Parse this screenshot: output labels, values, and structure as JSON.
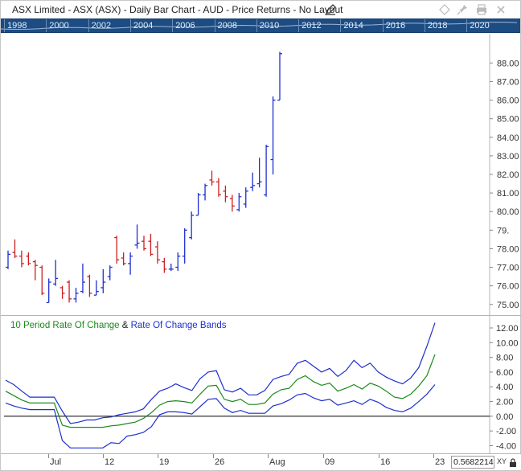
{
  "window": {
    "title": "ASX Limited - ASX (ASX) - Daily Bar Chart - AUD - Price Returns - No Layout",
    "icons": [
      "edit-icon",
      "diamond-icon",
      "pin-icon",
      "print-icon",
      "close-icon"
    ]
  },
  "overview": {
    "years": [
      "1998",
      "2000",
      "2002",
      "2004",
      "2006",
      "2008",
      "2010",
      "2012",
      "2014",
      "2016",
      "2018",
      "2020"
    ]
  },
  "indicator": {
    "title_part1": "10 Period Rate Of Change",
    "title_amp": " & ",
    "title_part2": "Rate Of Change Bands",
    "color_roc": "#1a8a1a",
    "color_bands": "#1f2fcf"
  },
  "date_axis": {
    "labels": [
      "Jul",
      "12",
      "19",
      "26",
      "Aug",
      "09",
      "16",
      "23"
    ]
  },
  "readout": {
    "value": "0.5682214",
    "xy_label": "XY"
  },
  "colors": {
    "up_bar": "#1f2fcf",
    "down_bar": "#cc1f1f",
    "overview_bg": "#1c4c82"
  },
  "chart_data": [
    {
      "type": "bar",
      "title": "ASX Limited - ASX (ASX) - Daily Bar Chart - AUD - Price Returns - No Layout",
      "ylim": [
        74.6,
        89.4
      ],
      "y_ticks": [
        75,
        76,
        77,
        78,
        79,
        80,
        81,
        82,
        83,
        84,
        85,
        86,
        87,
        88
      ],
      "y_tick_labels": [
        "75.00",
        "76.00",
        "77.00",
        "78.00",
        "79.",
        "80.00",
        "81.00",
        "82.00",
        "83.00",
        "84.00",
        "85.00",
        "86.00",
        "87.00",
        "88.00"
      ],
      "bars": [
        {
          "o": 77.0,
          "h": 77.9,
          "l": 76.9,
          "c": 77.7
        },
        {
          "o": 77.8,
          "h": 78.5,
          "l": 77.5,
          "c": 77.6
        },
        {
          "o": 77.6,
          "h": 77.9,
          "l": 77.0,
          "c": 77.2
        },
        {
          "o": 77.6,
          "h": 77.8,
          "l": 77.1,
          "c": 77.2
        },
        {
          "o": 77.3,
          "h": 77.4,
          "l": 76.3,
          "c": 77.1
        },
        {
          "o": 77.0,
          "h": 77.1,
          "l": 75.5,
          "c": 75.6
        },
        {
          "o": 75.1,
          "h": 76.4,
          "l": 75.1,
          "c": 76.2
        },
        {
          "o": 76.1,
          "h": 77.4,
          "l": 76.0,
          "c": 76.4
        },
        {
          "o": 75.9,
          "h": 76.0,
          "l": 75.3,
          "c": 75.6
        },
        {
          "o": 76.2,
          "h": 76.3,
          "l": 75.1,
          "c": 75.3
        },
        {
          "o": 75.3,
          "h": 75.9,
          "l": 75.1,
          "c": 75.6
        },
        {
          "o": 75.7,
          "h": 77.2,
          "l": 75.6,
          "c": 76.2
        },
        {
          "o": 76.5,
          "h": 76.6,
          "l": 75.4,
          "c": 75.6
        },
        {
          "o": 75.5,
          "h": 76.3,
          "l": 75.5,
          "c": 75.7
        },
        {
          "o": 75.9,
          "h": 76.9,
          "l": 75.6,
          "c": 76.2
        },
        {
          "o": 76.5,
          "h": 77.1,
          "l": 76.3,
          "c": 77.0
        },
        {
          "o": 78.6,
          "h": 78.7,
          "l": 77.2,
          "c": 77.4
        },
        {
          "o": 77.5,
          "h": 77.8,
          "l": 77.1,
          "c": 77.2
        },
        {
          "o": 77.2,
          "h": 77.8,
          "l": 76.6,
          "c": 77.6
        },
        {
          "o": 78.2,
          "h": 79.3,
          "l": 78.0,
          "c": 78.3
        },
        {
          "o": 78.4,
          "h": 78.7,
          "l": 77.9,
          "c": 78.0
        },
        {
          "o": 78.4,
          "h": 78.8,
          "l": 77.6,
          "c": 77.7
        },
        {
          "o": 78.1,
          "h": 78.4,
          "l": 77.2,
          "c": 77.4
        },
        {
          "o": 77.3,
          "h": 77.5,
          "l": 76.7,
          "c": 76.9
        },
        {
          "o": 76.9,
          "h": 77.2,
          "l": 76.8,
          "c": 76.9
        },
        {
          "o": 77.0,
          "h": 77.8,
          "l": 76.8,
          "c": 77.6
        },
        {
          "o": 77.6,
          "h": 79.1,
          "l": 77.2,
          "c": 79.0
        },
        {
          "o": 78.6,
          "h": 80.0,
          "l": 78.5,
          "c": 79.8
        },
        {
          "o": 79.8,
          "h": 81.0,
          "l": 79.8,
          "c": 80.9
        },
        {
          "o": 80.9,
          "h": 81.5,
          "l": 80.6,
          "c": 81.4
        },
        {
          "o": 81.7,
          "h": 82.2,
          "l": 81.4,
          "c": 81.6
        },
        {
          "o": 81.6,
          "h": 81.8,
          "l": 80.8,
          "c": 80.9
        },
        {
          "o": 81.1,
          "h": 81.4,
          "l": 80.5,
          "c": 80.8
        },
        {
          "o": 80.7,
          "h": 80.9,
          "l": 80.0,
          "c": 80.3
        },
        {
          "o": 80.1,
          "h": 81.0,
          "l": 80.0,
          "c": 80.8
        },
        {
          "o": 80.4,
          "h": 81.3,
          "l": 80.2,
          "c": 81.1
        },
        {
          "o": 81.3,
          "h": 82.1,
          "l": 81.1,
          "c": 81.4
        },
        {
          "o": 81.5,
          "h": 82.9,
          "l": 81.3,
          "c": 81.6
        },
        {
          "o": 80.9,
          "h": 83.6,
          "l": 80.8,
          "c": 83.5
        },
        {
          "o": 82.8,
          "h": 86.2,
          "l": 82.0,
          "c": 86.0
        },
        {
          "o": 86.0,
          "h": 88.6,
          "l": 86.0,
          "c": 88.5
        }
      ]
    },
    {
      "type": "line",
      "title": "10 Period Rate Of Change & Rate Of Change Bands",
      "ylim": [
        -4.6,
        13.2
      ],
      "y_ticks": [
        -4,
        -2,
        0,
        2,
        4,
        6,
        8,
        10,
        12
      ],
      "y_tick_labels": [
        "-4.00",
        "-2.00",
        "0.00",
        "2.00",
        "4.00",
        "6.00",
        "8.00",
        "10.00",
        "12.00"
      ],
      "series": [
        {
          "values": [
            3.4,
            2.8,
            2.2,
            1.8,
            1.8,
            1.8,
            1.8,
            -1.2,
            -1.5,
            -1.5,
            -1.5,
            -1.5,
            -1.5,
            -1.3,
            -1.2,
            -1.0,
            -0.8,
            -0.3,
            0.5,
            1.5,
            2.0,
            2.1,
            2.0,
            1.8,
            3.0,
            4.1,
            4.2,
            2.3,
            2.0,
            2.3,
            1.6,
            1.6,
            1.8,
            3.0,
            3.6,
            3.8,
            5.0,
            5.5,
            4.7,
            4.2,
            4.5,
            3.4,
            3.8,
            4.3,
            3.7,
            4.5,
            4.1,
            3.4,
            2.6,
            2.4,
            3.0,
            4.1,
            5.5,
            8.4
          ]
        },
        {
          "values": [
            4.9,
            4.3,
            3.4,
            2.6,
            2.6,
            2.6,
            2.6,
            0.7,
            -1.0,
            -0.8,
            -0.5,
            -0.5,
            -0.2,
            -0.1,
            0.2,
            0.4,
            0.6,
            1.0,
            2.3,
            3.4,
            3.8,
            4.4,
            3.9,
            3.5,
            5.1,
            6.0,
            6.2,
            3.6,
            3.3,
            3.8,
            2.9,
            2.9,
            3.5,
            5.0,
            5.4,
            5.7,
            7.2,
            7.6,
            6.8,
            6.0,
            6.5,
            5.4,
            6.2,
            7.6,
            6.6,
            7.2,
            6.0,
            5.3,
            4.8,
            4.4,
            5.2,
            6.6,
            9.5,
            12.7
          ]
        },
        {
          "values": [
            1.8,
            1.4,
            1.1,
            0.9,
            0.9,
            0.9,
            0.9,
            -3.3,
            -4.3,
            -4.3,
            -4.3,
            -4.3,
            -4.3,
            -3.6,
            -3.7,
            -2.7,
            -2.5,
            -2.2,
            -1.4,
            0.2,
            0.6,
            0.6,
            0.5,
            0.3,
            1.3,
            2.3,
            2.4,
            1.1,
            0.5,
            0.8,
            0.4,
            0.4,
            0.4,
            1.4,
            1.7,
            2.2,
            2.9,
            3.1,
            2.5,
            2.1,
            2.3,
            1.5,
            1.8,
            2.1,
            1.6,
            2.3,
            1.9,
            1.2,
            0.8,
            0.6,
            1.1,
            2.0,
            3.0,
            4.3
          ]
        }
      ]
    }
  ]
}
